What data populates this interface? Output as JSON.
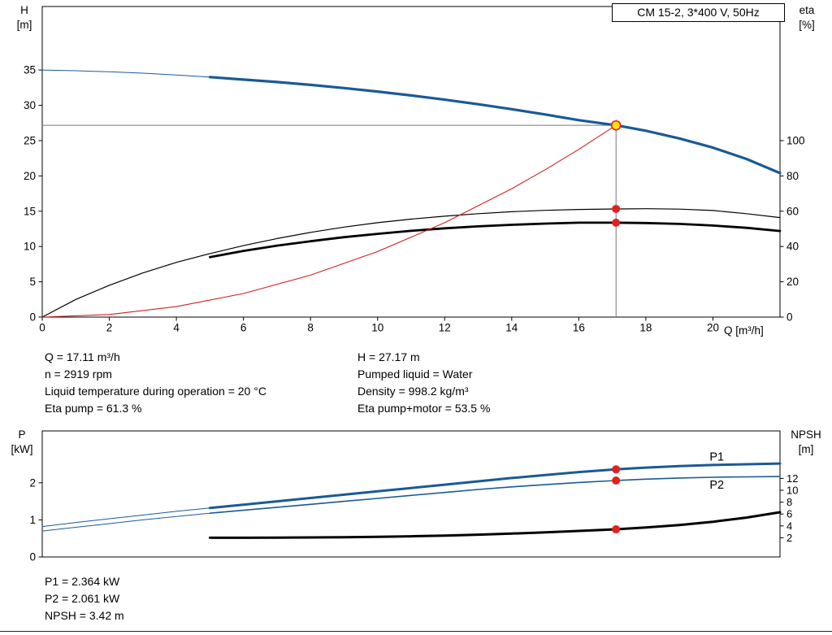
{
  "colors": {
    "blue": "#1a5a96",
    "black": "#000000",
    "red": "#d02020",
    "marker_red": "#e32020",
    "marker_yellow": "#ffe00a",
    "guide": "#787878",
    "frame": "#000000"
  },
  "info": {
    "left": [
      "Q = 17.11 m³/h",
      "n = 2919 rpm",
      "Liquid temperature during operation = 20 °C",
      "Eta pump = 61.3 %"
    ],
    "right": [
      "H = 27.17 m",
      "Pumped liquid = Water",
      "Density = 998.2 kg/m³",
      "Eta pump+motor = 53.5 %"
    ],
    "power": [
      "P1 = 2.364 kW",
      "P2 = 2.061 kW",
      "NPSH = 3.42 m"
    ]
  },
  "chart_data": [
    {
      "type": "line",
      "title": "CM 15-2, 3*400 V, 50Hz",
      "xlabel": "Q [m³/h]",
      "ylabel_left": [
        "H",
        "[m]"
      ],
      "ylabel_right": [
        "eta",
        "[%]"
      ],
      "xlim": [
        0,
        22
      ],
      "x_ticks": [
        0,
        2,
        4,
        6,
        8,
        10,
        12,
        14,
        16,
        18,
        20
      ],
      "ylim_left": [
        0,
        44
      ],
      "y_ticks_left": [
        0,
        5,
        10,
        15,
        20,
        25,
        30,
        35
      ],
      "right_axis": {
        "unit": "%",
        "ticks": [
          0,
          20,
          40,
          60,
          80,
          100
        ],
        "m_per_percent": 0.25
      },
      "duty_point": {
        "q": 17.11,
        "h": 27.17
      },
      "series": [
        {
          "name": "head-curve-extrapolated",
          "axis": "left",
          "color": "blue",
          "width": 1,
          "points": [
            [
              0,
              35.0
            ],
            [
              1,
              34.9
            ],
            [
              2,
              34.75
            ],
            [
              3,
              34.55
            ],
            [
              4,
              34.3
            ],
            [
              5,
              34.0
            ]
          ]
        },
        {
          "name": "head-curve",
          "axis": "left",
          "color": "blue",
          "width": 3.2,
          "points": [
            [
              5,
              34.0
            ],
            [
              6,
              33.65
            ],
            [
              7,
              33.3
            ],
            [
              8,
              32.9
            ],
            [
              9,
              32.45
            ],
            [
              10,
              31.95
            ],
            [
              11,
              31.4
            ],
            [
              12,
              30.8
            ],
            [
              13,
              30.15
            ],
            [
              14,
              29.45
            ],
            [
              15,
              28.7
            ],
            [
              16,
              27.9
            ],
            [
              17.11,
              27.17
            ],
            [
              18,
              26.4
            ],
            [
              19,
              25.3
            ],
            [
              20,
              24.0
            ],
            [
              21,
              22.4
            ],
            [
              22,
              20.4
            ]
          ]
        },
        {
          "name": "eta-pump-curve",
          "axis": "right",
          "color": "black",
          "width": 1.2,
          "points": [
            [
              0,
              0
            ],
            [
              1,
              10
            ],
            [
              2,
              18
            ],
            [
              3,
              25
            ],
            [
              4,
              31
            ],
            [
              5,
              36
            ],
            [
              6,
              40.5
            ],
            [
              7,
              44.5
            ],
            [
              8,
              48
            ],
            [
              9,
              51
            ],
            [
              10,
              53.5
            ],
            [
              11,
              55.5
            ],
            [
              12,
              57.2
            ],
            [
              13,
              58.6
            ],
            [
              14,
              59.7
            ],
            [
              15,
              60.5
            ],
            [
              16,
              61.0
            ],
            [
              17.11,
              61.3
            ],
            [
              18,
              61.4
            ],
            [
              19,
              61.2
            ],
            [
              20,
              60.4
            ],
            [
              21,
              58.6
            ],
            [
              22,
              56.4
            ]
          ]
        },
        {
          "name": "eta-pump-motor-curve",
          "axis": "right",
          "color": "black",
          "width": 2.8,
          "points": [
            [
              5,
              34
            ],
            [
              6,
              37.5
            ],
            [
              7,
              40.5
            ],
            [
              8,
              43
            ],
            [
              9,
              45.3
            ],
            [
              10,
              47.2
            ],
            [
              11,
              48.9
            ],
            [
              12,
              50.3
            ],
            [
              13,
              51.4
            ],
            [
              14,
              52.3
            ],
            [
              15,
              53.0
            ],
            [
              16,
              53.5
            ],
            [
              17.11,
              53.5
            ],
            [
              18,
              53.3
            ],
            [
              19,
              52.8
            ],
            [
              20,
              51.9
            ],
            [
              21,
              50.6
            ],
            [
              22,
              48.8
            ]
          ]
        },
        {
          "name": "system-curve",
          "axis": "left",
          "color": "red",
          "width": 1.1,
          "points": [
            [
              0,
              0
            ],
            [
              2,
              0.37
            ],
            [
              4,
              1.49
            ],
            [
              6,
              3.34
            ],
            [
              8,
              5.94
            ],
            [
              10,
              9.28
            ],
            [
              12,
              13.37
            ],
            [
              14,
              18.19
            ],
            [
              15,
              20.88
            ],
            [
              16,
              23.76
            ],
            [
              16.6,
              25.6
            ],
            [
              17.11,
              27.17
            ]
          ]
        }
      ],
      "markers": [
        {
          "q": 17.11,
          "value": 61.3,
          "axis": "right"
        },
        {
          "q": 17.11,
          "value": 53.5,
          "axis": "right"
        }
      ]
    },
    {
      "type": "line",
      "title": "",
      "xlabel": "",
      "ylabel_left": [
        "P",
        "[kW]"
      ],
      "ylabel_right": [
        "NPSH",
        "[m]"
      ],
      "xlim": [
        0,
        22
      ],
      "x_ticks": [],
      "ylim_left": [
        0,
        3.4
      ],
      "y_ticks_left": [
        0,
        1,
        2
      ],
      "right_axis": {
        "unit": "m",
        "ticks": [
          2,
          4,
          6,
          8,
          10,
          12
        ]
      },
      "series": [
        {
          "name": "p1-curve-extrapolated",
          "axis": "left",
          "color": "blue",
          "width": 1,
          "points": [
            [
              0,
              0.82
            ],
            [
              1,
              0.93
            ],
            [
              2,
              1.03
            ],
            [
              3,
              1.13
            ],
            [
              4,
              1.23
            ],
            [
              5,
              1.32
            ]
          ]
        },
        {
          "name": "p1-curve",
          "axis": "left",
          "color": "blue",
          "width": 3,
          "points": [
            [
              5,
              1.32
            ],
            [
              6,
              1.41
            ],
            [
              7,
              1.5
            ],
            [
              8,
              1.59
            ],
            [
              9,
              1.68
            ],
            [
              10,
              1.77
            ],
            [
              11,
              1.86
            ],
            [
              12,
              1.95
            ],
            [
              13,
              2.04
            ],
            [
              14,
              2.13
            ],
            [
              15,
              2.21
            ],
            [
              16,
              2.29
            ],
            [
              17.11,
              2.364
            ],
            [
              18,
              2.41
            ],
            [
              19,
              2.45
            ],
            [
              20,
              2.48
            ],
            [
              21,
              2.5
            ],
            [
              22,
              2.52
            ]
          ]
        },
        {
          "name": "p2-curve-extrapolated",
          "axis": "left",
          "color": "blue",
          "width": 1,
          "points": [
            [
              0,
              0.7
            ],
            [
              1,
              0.8
            ],
            [
              2,
              0.9
            ],
            [
              3,
              1.0
            ],
            [
              4,
              1.09
            ],
            [
              5,
              1.18
            ]
          ]
        },
        {
          "name": "p2-curve",
          "axis": "left",
          "color": "blue",
          "width": 1.6,
          "points": [
            [
              5,
              1.18
            ],
            [
              6,
              1.26
            ],
            [
              7,
              1.34
            ],
            [
              8,
              1.42
            ],
            [
              9,
              1.5
            ],
            [
              10,
              1.58
            ],
            [
              11,
              1.66
            ],
            [
              12,
              1.74
            ],
            [
              13,
              1.82
            ],
            [
              14,
              1.89
            ],
            [
              15,
              1.95
            ],
            [
              16,
              2.01
            ],
            [
              17.11,
              2.061
            ],
            [
              18,
              2.1
            ],
            [
              19,
              2.13
            ],
            [
              20,
              2.15
            ],
            [
              21,
              2.16
            ],
            [
              22,
              2.17
            ]
          ]
        },
        {
          "name": "npsh-curve",
          "axis": "right",
          "color": "black",
          "width": 3,
          "points": [
            [
              5,
              2.0
            ],
            [
              6,
              2.0
            ],
            [
              7,
              2.02
            ],
            [
              8,
              2.05
            ],
            [
              9,
              2.1
            ],
            [
              10,
              2.16
            ],
            [
              11,
              2.25
            ],
            [
              12,
              2.37
            ],
            [
              13,
              2.52
            ],
            [
              14,
              2.7
            ],
            [
              15,
              2.92
            ],
            [
              16,
              3.15
            ],
            [
              17.11,
              3.42
            ],
            [
              18,
              3.72
            ],
            [
              19,
              4.15
            ],
            [
              20,
              4.7
            ],
            [
              21,
              5.4
            ],
            [
              22,
              6.3
            ]
          ]
        }
      ],
      "markers": [
        {
          "q": 17.11,
          "value": 2.364,
          "axis": "left"
        },
        {
          "q": 17.11,
          "value": 2.061,
          "axis": "left"
        },
        {
          "q": 17.11,
          "value": 3.42,
          "axis": "right"
        }
      ],
      "curve_labels": [
        {
          "text": "P1",
          "q": 19.9,
          "value": 2.6
        },
        {
          "text": "P2",
          "q": 19.9,
          "value": 1.84
        }
      ]
    }
  ]
}
